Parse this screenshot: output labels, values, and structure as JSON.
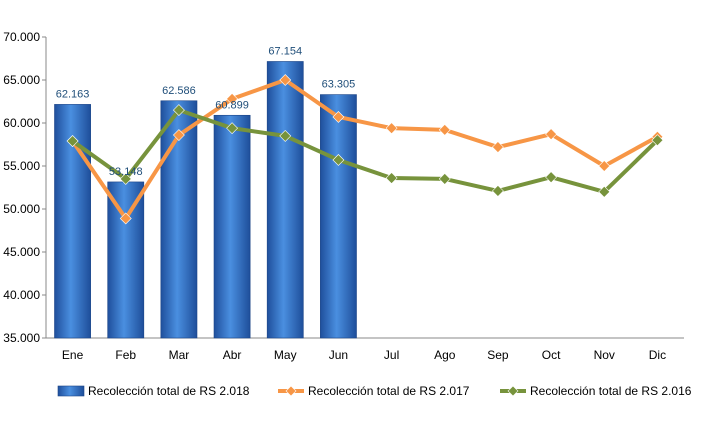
{
  "chart_data": {
    "type": "bar",
    "categories": [
      "Ene",
      "Feb",
      "Mar",
      "Abr",
      "May",
      "Jun",
      "Jul",
      "Ago",
      "Sep",
      "Oct",
      "Nov",
      "Dic"
    ],
    "ylim": [
      35000,
      70000
    ],
    "yticks": [
      "35.000",
      "40.000",
      "45.000",
      "50.000",
      "55.000",
      "60.000",
      "65.000",
      "70.000"
    ],
    "grid": false,
    "legend_position": "bottom",
    "series": [
      {
        "name": "Recolección total de RS 2.018",
        "kind": "bar",
        "color": "#2E6FC7",
        "values": [
          62163,
          53148,
          62586,
          60899,
          67154,
          63305,
          null,
          null,
          null,
          null,
          null,
          null
        ],
        "labels": [
          "62.163",
          "53.148",
          "62.586",
          "60.899",
          "67.154",
          "63.305"
        ]
      },
      {
        "name": "Recolección total de RS 2.017",
        "kind": "line",
        "color": "#F79646",
        "values": [
          57900,
          48900,
          58600,
          62800,
          65000,
          60700,
          59400,
          59200,
          57200,
          58700,
          55000,
          58400
        ]
      },
      {
        "name": "Recolección total de RS 2.016",
        "kind": "line",
        "color": "#77933C",
        "values": [
          57900,
          53500,
          61500,
          59400,
          58500,
          55700,
          53600,
          53500,
          52100,
          53700,
          52000,
          58000
        ]
      }
    ]
  }
}
